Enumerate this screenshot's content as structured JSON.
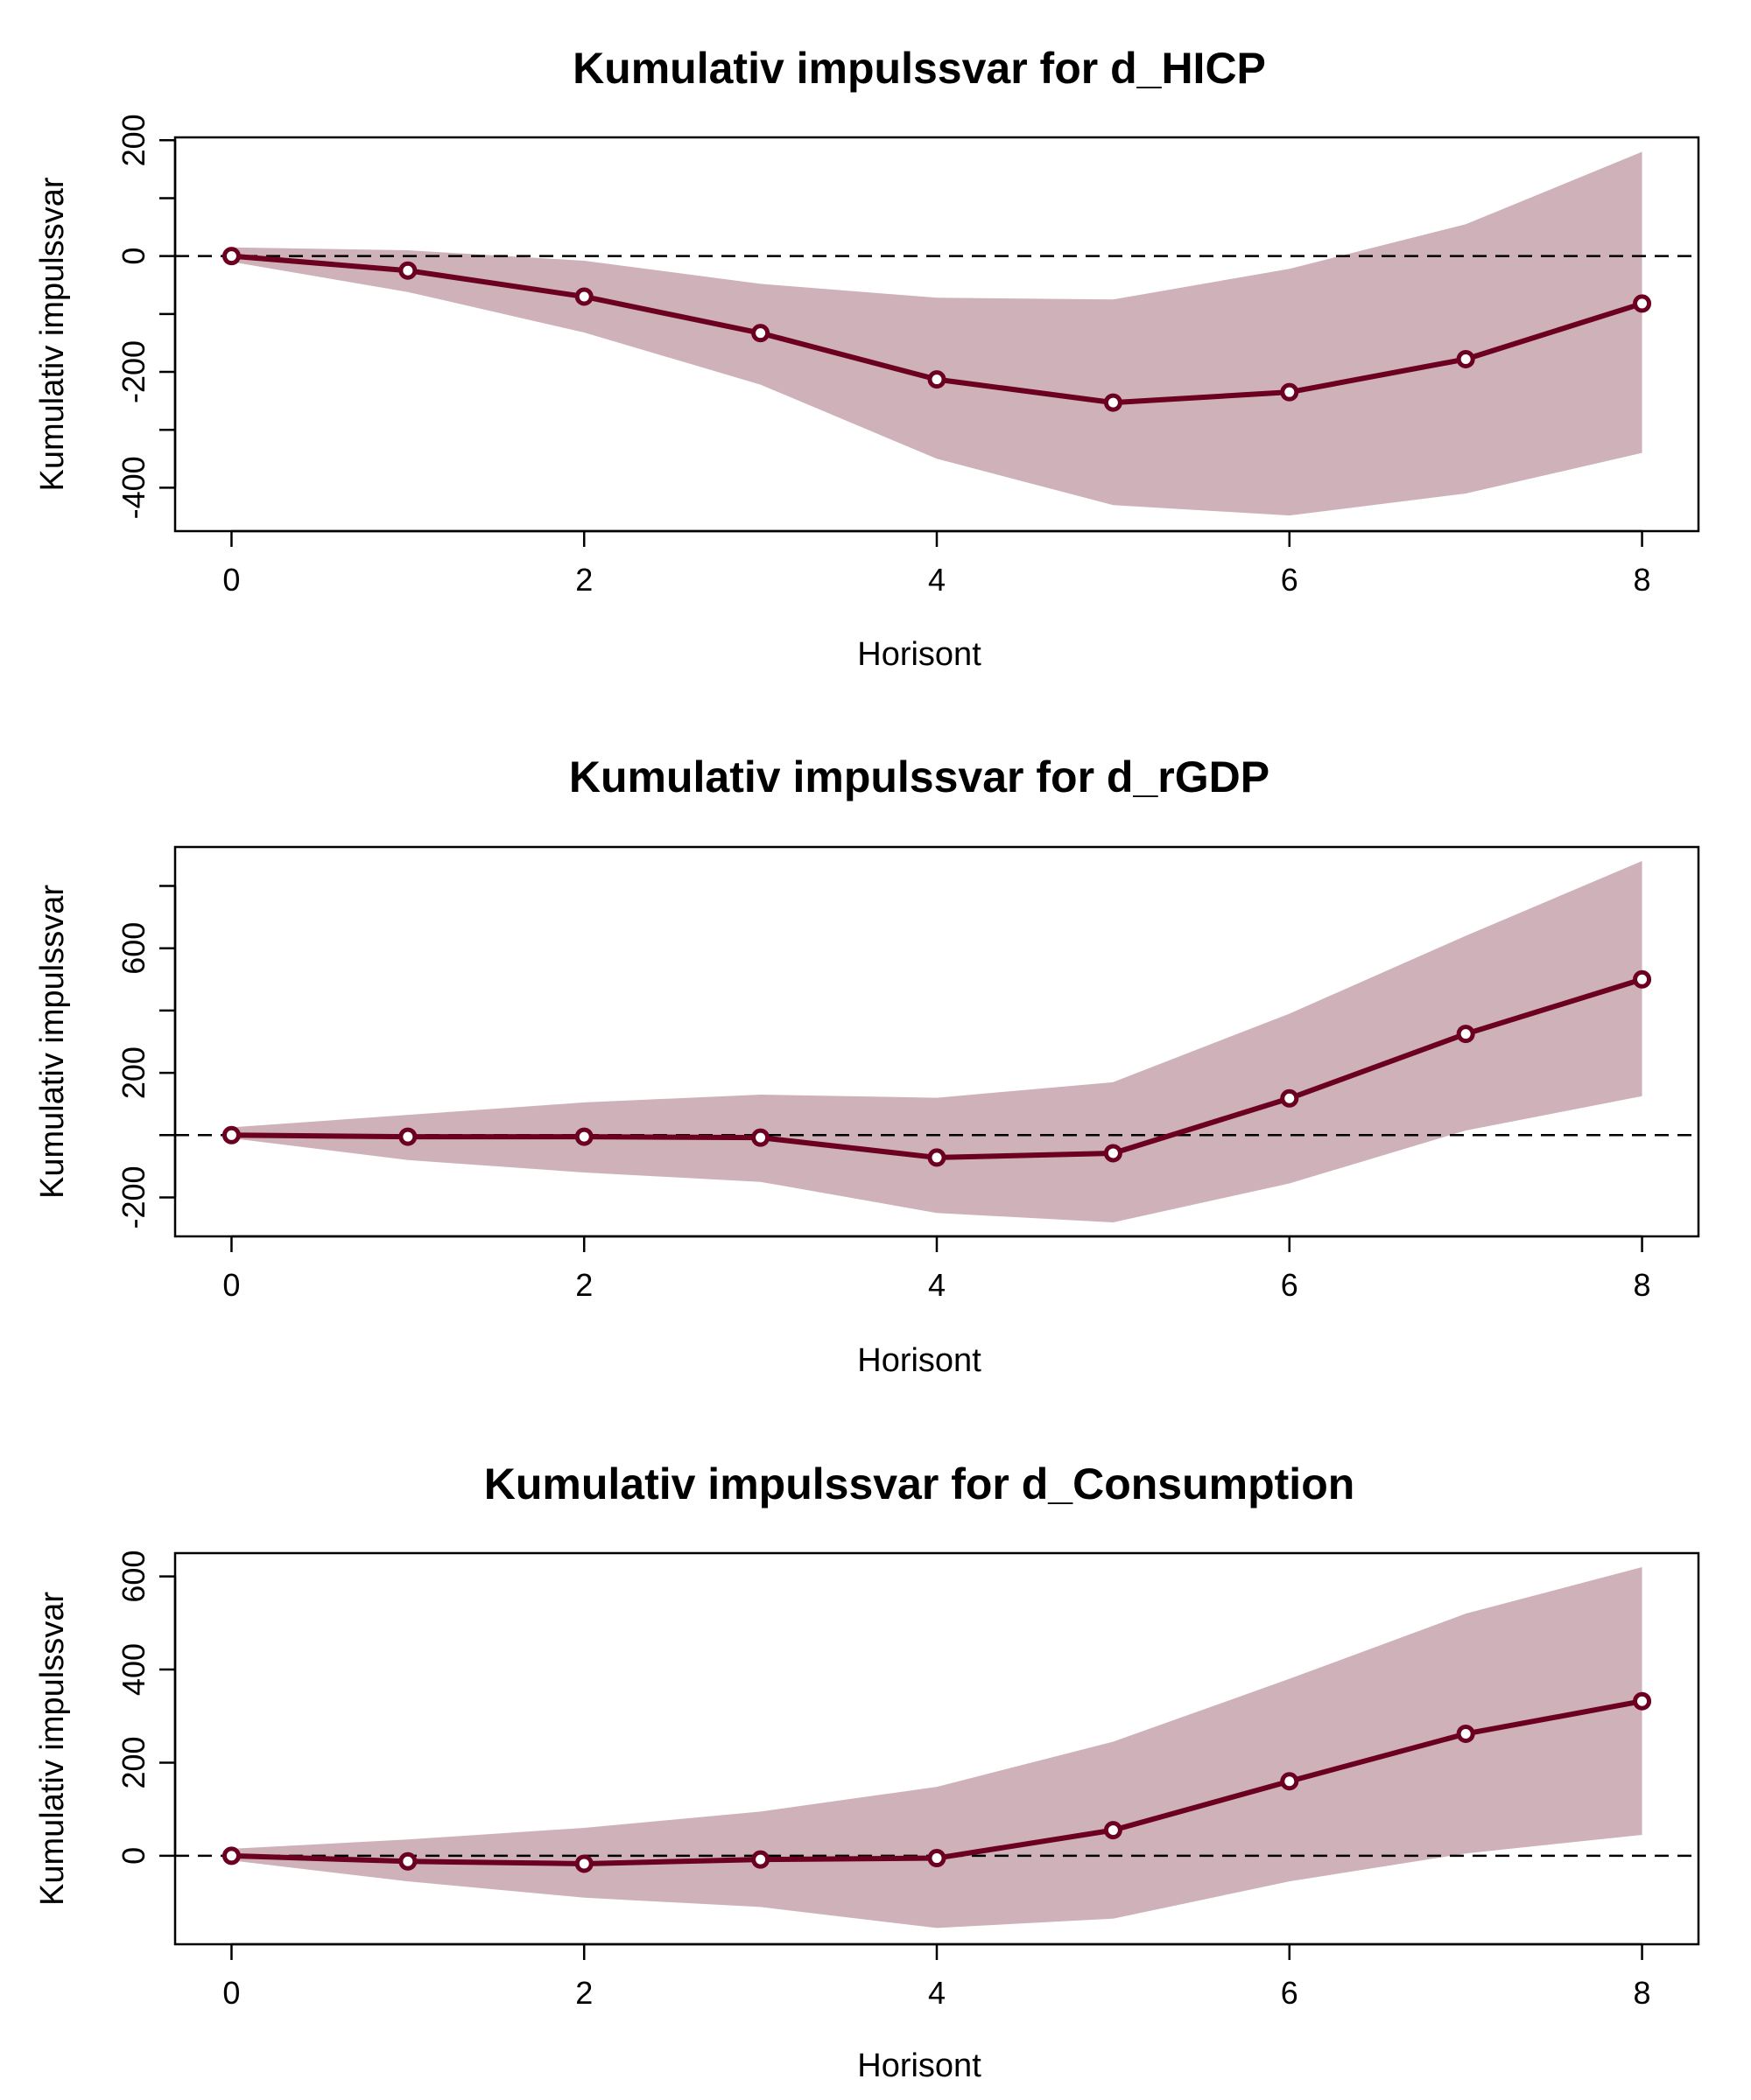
{
  "colors": {
    "line": "#6b0020",
    "band": "#cfb1b9",
    "zero_line": "#000000",
    "axis": "#000000"
  },
  "chart_data": [
    {
      "type": "line",
      "title": "Kumulativ impulssvar for d_HICP",
      "xlabel": "Horisont",
      "ylabel": "Kumulativ impulssvar",
      "x": [
        0,
        1,
        2,
        3,
        4,
        5,
        6,
        7,
        8
      ],
      "xticks": [
        0,
        2,
        4,
        6,
        8
      ],
      "xlim": [
        -0.32,
        8.32
      ],
      "ylim": [
        -475,
        205
      ],
      "yticks": [
        -400,
        -300,
        -200,
        -100,
        0,
        100,
        200
      ],
      "ytick_labels": [
        "-400",
        "",
        "-200",
        "",
        "0",
        "",
        "200"
      ],
      "series": [
        {
          "values": [
            0,
            -25,
            -70,
            -133,
            -213,
            -253,
            -235,
            -178,
            -82
          ]
        }
      ],
      "band": {
        "lower": [
          -10,
          -62,
          -132,
          -222,
          -350,
          -430,
          -448,
          -410,
          -340
        ],
        "upper": [
          15,
          10,
          -8,
          -48,
          -72,
          -75,
          -22,
          55,
          180
        ]
      },
      "hline": 0,
      "grid": false
    },
    {
      "type": "line",
      "title": "Kumulativ impulssvar for d_rGDP",
      "xlabel": "Horisont",
      "ylabel": "Kumulativ impulssvar",
      "x": [
        0,
        1,
        2,
        3,
        4,
        5,
        6,
        7,
        8
      ],
      "xticks": [
        0,
        2,
        4,
        6,
        8
      ],
      "xlim": [
        -0.32,
        8.32
      ],
      "ylim": [
        -325,
        925
      ],
      "yticks": [
        -200,
        0,
        200,
        400,
        600,
        800
      ],
      "ytick_labels": [
        "-200",
        "",
        "200",
        "",
        "600",
        ""
      ],
      "series": [
        {
          "values": [
            0,
            -5,
            -5,
            -8,
            -72,
            -58,
            118,
            325,
            500
          ]
        }
      ],
      "band": {
        "lower": [
          -10,
          -80,
          -120,
          -150,
          -250,
          -280,
          -155,
          15,
          125
        ],
        "upper": [
          25,
          65,
          105,
          130,
          120,
          170,
          390,
          640,
          880
        ]
      },
      "hline": 0,
      "grid": false
    },
    {
      "type": "line",
      "title": "Kumulativ impulssvar for d_Consumption",
      "xlabel": "Horisont",
      "ylabel": "Kumulativ impulssvar",
      "x": [
        0,
        1,
        2,
        3,
        4,
        5,
        6,
        7,
        8
      ],
      "xticks": [
        0,
        2,
        4,
        6,
        8
      ],
      "xlim": [
        -0.32,
        8.32
      ],
      "ylim": [
        -190,
        650
      ],
      "yticks": [
        0,
        200,
        400,
        600
      ],
      "ytick_labels": [
        "0",
        "200",
        "400",
        "600"
      ],
      "series": [
        {
          "values": [
            0,
            -12,
            -17,
            -8,
            -5,
            55,
            160,
            262,
            332
          ]
        }
      ],
      "band": {
        "lower": [
          -10,
          -55,
          -90,
          -110,
          -155,
          -135,
          -55,
          5,
          45
        ],
        "upper": [
          15,
          35,
          60,
          95,
          148,
          245,
          380,
          520,
          620
        ]
      },
      "hline": 0,
      "grid": false
    }
  ]
}
